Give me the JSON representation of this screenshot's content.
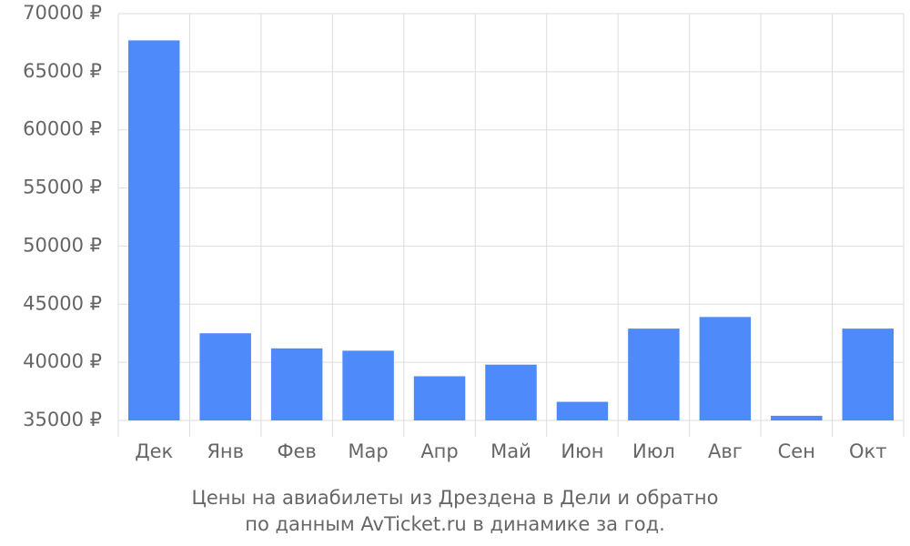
{
  "chart_data": {
    "type": "bar",
    "title": [
      "Цены на авиабилеты из Дрездена в Дели и обратно",
      "по данным AvTicket.ru в динамике за год."
    ],
    "categories": [
      "Дек",
      "Янв",
      "Фев",
      "Мар",
      "Апр",
      "Май",
      "Июн",
      "Июл",
      "Авг",
      "Сен",
      "Окт"
    ],
    "values": [
      67700,
      42500,
      41200,
      41000,
      38800,
      39800,
      36600,
      42900,
      43900,
      35400,
      42900
    ],
    "color": "#4e8af9",
    "ylim": [
      35000,
      70000
    ],
    "yticks": [
      {
        "value": 35000,
        "label": "35000 ₽"
      },
      {
        "value": 40000,
        "label": "40000 ₽"
      },
      {
        "value": 45000,
        "label": "45000 ₽"
      },
      {
        "value": 50000,
        "label": "50000 ₽"
      },
      {
        "value": 55000,
        "label": "55000 ₽"
      },
      {
        "value": 60000,
        "label": "60000 ₽"
      },
      {
        "value": 65000,
        "label": "65000 ₽"
      },
      {
        "value": 70000,
        "label": "70000 ₽"
      }
    ],
    "grid": true
  }
}
